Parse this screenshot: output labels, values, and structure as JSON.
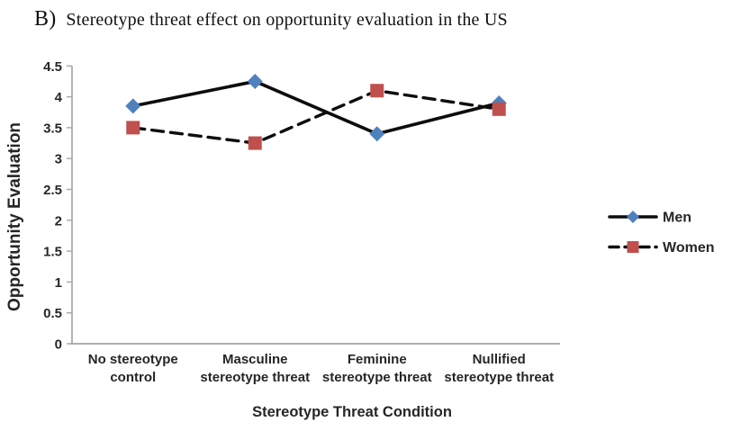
{
  "header": {
    "panel_label": "B)",
    "title": "Stereotype threat effect on opportunity evaluation in the US"
  },
  "chart_data": {
    "type": "line",
    "title": "B) Stereotype threat effect on opportunity evaluation in the US",
    "categories": [
      "No stereotype control",
      "Masculine stereotype threat",
      "Feminine stereotype threat",
      "Nullified stereotype threat"
    ],
    "category_label_lines": [
      [
        "No stereotype",
        "control"
      ],
      [
        "Masculine",
        "stereotype threat"
      ],
      [
        "Feminine",
        "stereotype threat"
      ],
      [
        "Nullified",
        "stereotype threat"
      ]
    ],
    "series": [
      {
        "name": "Men",
        "values": [
          3.85,
          4.25,
          3.4,
          3.9
        ],
        "marker": "diamond",
        "marker_color": "#4F81BD",
        "line_color": "#0d0d0d",
        "line_style": "solid"
      },
      {
        "name": "Women",
        "values": [
          3.5,
          3.25,
          4.1,
          3.8
        ],
        "marker": "square",
        "marker_color": "#C0504D",
        "line_color": "#0d0d0d",
        "line_style": "dashed"
      }
    ],
    "xlabel": "Stereotype Threat Condition",
    "ylabel": "Opportunity Evaluation",
    "ylim": [
      0,
      4.5
    ],
    "ytick_step": 0.5,
    "yticks": [
      "0",
      "0.5",
      "1",
      "1.5",
      "2",
      "2.5",
      "3",
      "3.5",
      "4",
      "4.5"
    ],
    "grid": false,
    "legend_position": "right",
    "axis_color": "#A6A6A6",
    "text_color": "#262626"
  }
}
